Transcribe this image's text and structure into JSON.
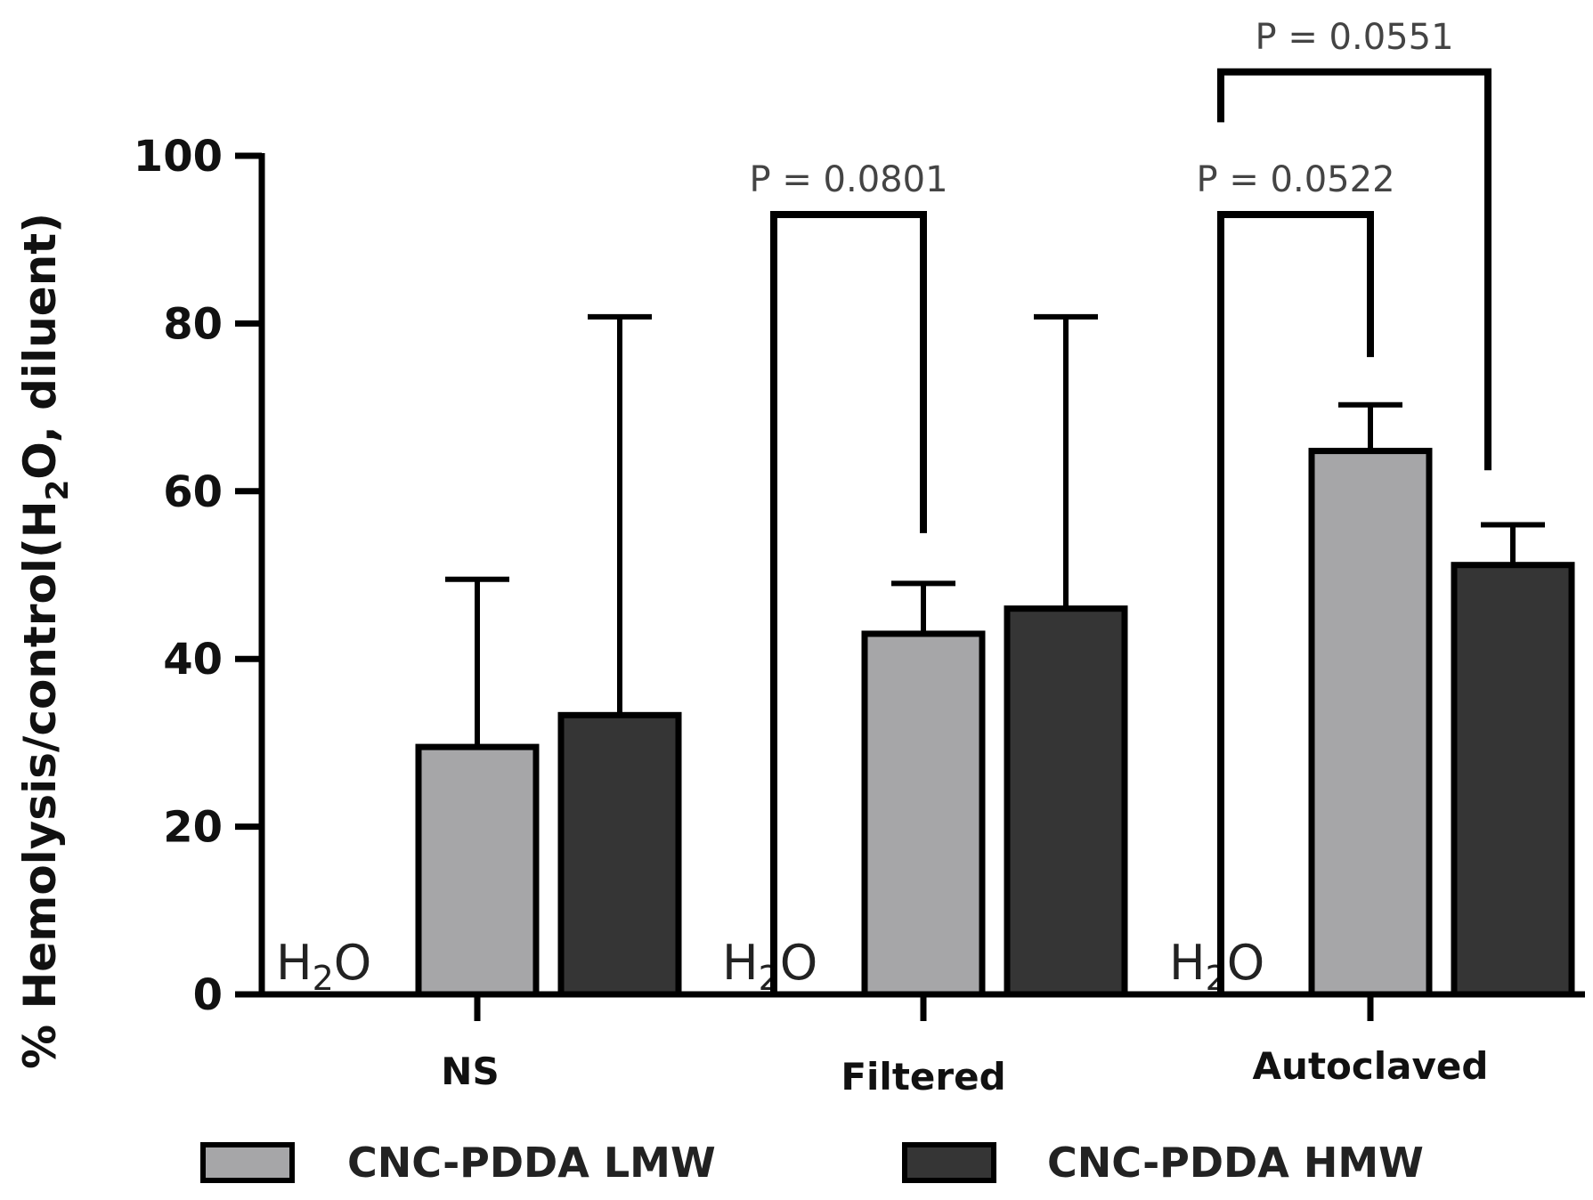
{
  "chart_data": {
    "type": "bar",
    "ylabel_parts": [
      "% Hemolysis/control(H",
      "2",
      "O, diluent)"
    ],
    "ylim": [
      0,
      100
    ],
    "yticks": [
      "0",
      "20",
      "40",
      "60",
      "80",
      "100"
    ],
    "categories": [
      "NS",
      "Filtered",
      "Autoclaved"
    ],
    "control_label": {
      "prefix": "H",
      "sub": "2",
      "suffix": "O"
    },
    "series": [
      {
        "name": "CNC-PDDA LMW",
        "color": "#a6a6a8",
        "values": [
          29.5,
          43,
          64.8
        ],
        "errors": [
          20,
          6,
          5.5
        ]
      },
      {
        "name": "CNC-PDDA HMW",
        "color": "#353535",
        "values": [
          33.3,
          46,
          51.2
        ],
        "errors": [
          47.5,
          34.8,
          4.8
        ]
      }
    ],
    "annotations": [
      {
        "text": "P = 0.0801",
        "category": 1,
        "from": "control",
        "to": "LMW",
        "top": 93,
        "left_bottom": 0,
        "right_bottom": 55
      },
      {
        "text": "P = 0.0522",
        "category": 2,
        "from": "control",
        "to": "LMW",
        "top": 93,
        "left_bottom": 0,
        "right_bottom": 76
      },
      {
        "text": "P = 0.0551",
        "category": 2,
        "from": "control",
        "to": "HMW",
        "top": 110,
        "left_bottom": 104,
        "right_bottom": 62.5
      }
    ]
  }
}
